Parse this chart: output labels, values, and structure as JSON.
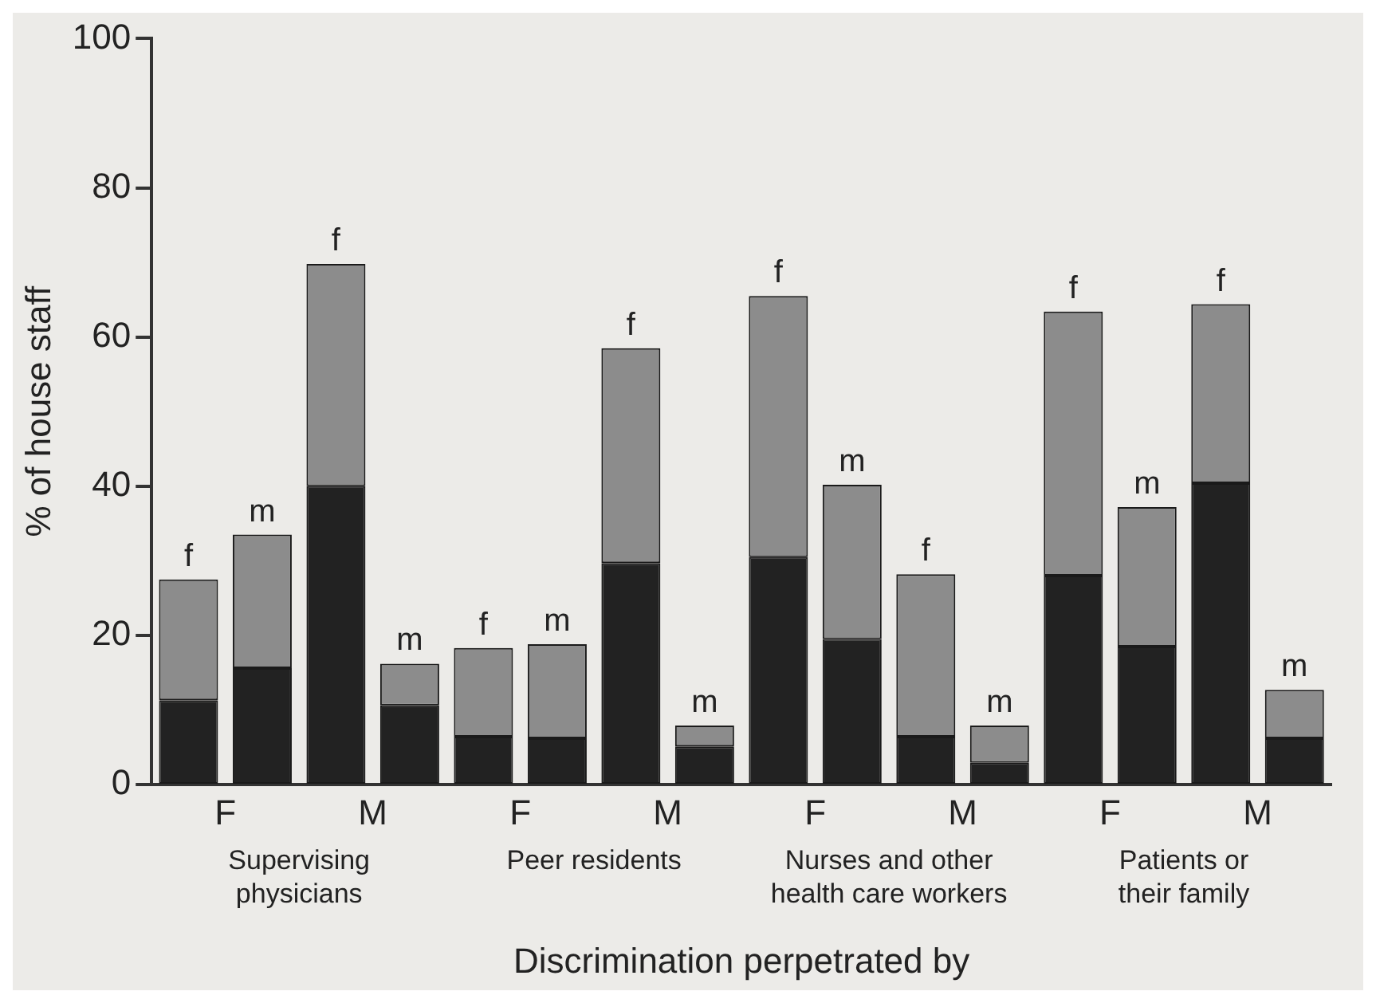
{
  "chart_data": {
    "type": "bar",
    "stacked": true,
    "xlabel": "Discrimination perpetrated by",
    "ylabel": "% of house staff",
    "categories": [
      null,
      null,
      null,
      null,
      null,
      null,
      null,
      null,
      null,
      null,
      null,
      null,
      null,
      null,
      null,
      null
    ],
    "series": [
      {
        "color": "#222222",
        "values": [
          11.3,
          null,
          40,
          null,
          6.4,
          null,
          29.7,
          null,
          30.5,
          null,
          6.4,
          null,
          28,
          null,
          40.4,
          null
        ]
      },
      {
        "name": "f",
        "color": "#8c8c8c",
        "values": [
          16.2,
          null,
          29.8,
          null,
          11.9,
          null,
          28.8,
          null,
          35,
          null,
          21.8,
          null,
          35.4,
          null,
          24,
          null
        ]
      },
      {
        "color": "#222222",
        "values": [
          null,
          15.6,
          null,
          10.6,
          null,
          6.2,
          null,
          5.1,
          null,
          19.5,
          null,
          2.9,
          null,
          18.5,
          null,
          6.2
        ]
      },
      {
        "name": "m",
        "color": "#8c8c8c",
        "values": [
          null,
          17.9,
          null,
          5.6,
          null,
          12.6,
          null,
          2.8,
          null,
          20.7,
          null,
          5,
          null,
          18.7,
          null,
          6.5
        ]
      }
    ],
    "annotations": [
      "F",
      "M",
      "F",
      "M",
      "F",
      "M",
      "F",
      "M",
      "Supervising\nphysicians",
      "Peer residents",
      "Nurses and other\nhealth care workers",
      "Patients or\ntheir family"
    ],
    "ylim": [
      0,
      100
    ],
    "yticks": [
      0,
      20,
      40,
      60,
      80,
      100
    ],
    "grid": false,
    "legend": false
  }
}
